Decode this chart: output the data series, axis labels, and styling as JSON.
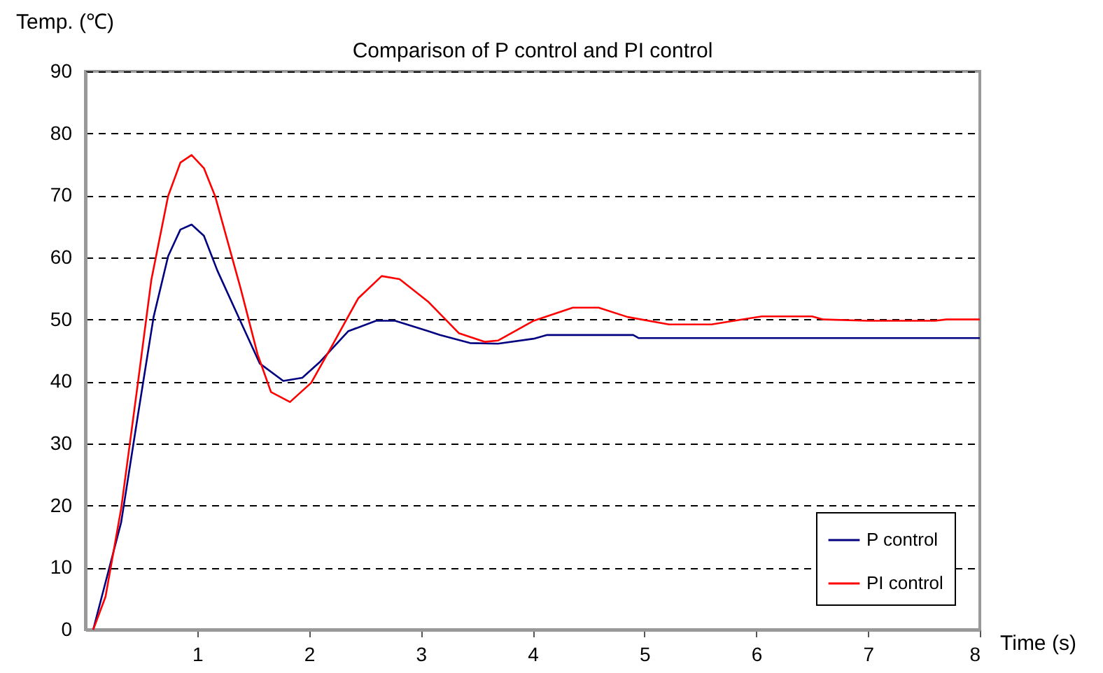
{
  "chart_data": {
    "type": "line",
    "title": "Comparison of P control and PI control",
    "xlabel": "Time (s)",
    "ylabel": "Temp. (℃)",
    "xlim": [
      0,
      8
    ],
    "xticks": [
      1,
      2,
      3,
      4,
      5,
      6,
      7,
      8
    ],
    "ylim": [
      0,
      90
    ],
    "yticks": [
      0,
      10,
      20,
      30,
      40,
      50,
      60,
      70,
      80,
      90
    ],
    "grid": "y",
    "legend": "bottom right",
    "marker": "none",
    "line_style": "solid",
    "series": [
      {
        "name": "P control",
        "color": "#000080",
        "x": [
          0.07,
          0.32,
          0.47,
          0.61,
          0.74,
          0.85,
          0.95,
          1.06,
          1.18,
          1.39,
          1.56,
          1.77,
          1.94,
          2.1,
          2.35,
          2.6,
          2.77,
          3.07,
          3.17,
          3.44,
          3.69,
          4.01,
          4.13,
          4.9,
          4.95,
          8.0
        ],
        "values": [
          0,
          17.3,
          34.6,
          50.4,
          60.2,
          64.5,
          65.3,
          63.5,
          57.9,
          49.6,
          42.9,
          40.1,
          40.6,
          43.2,
          48.1,
          49.8,
          49.8,
          48.1,
          47.5,
          46.2,
          46.1,
          46.9,
          47.5,
          47.5,
          47,
          47
        ]
      },
      {
        "name": "PI control",
        "color": "#ff0000",
        "x": [
          0.07,
          0.18,
          0.32,
          0.47,
          0.59,
          0.74,
          0.85,
          0.95,
          1.06,
          1.16,
          1.39,
          1.54,
          1.66,
          1.83,
          2.02,
          2.21,
          2.44,
          2.65,
          2.81,
          3.07,
          3.34,
          3.57,
          3.69,
          4.01,
          4.36,
          4.59,
          4.85,
          5.22,
          5.6,
          5.87,
          6.05,
          6.5,
          6.6,
          7.0,
          7.6,
          7.7,
          8.0
        ],
        "values": [
          0,
          5.3,
          19.5,
          39.8,
          56.4,
          69.9,
          75.3,
          76.5,
          74.4,
          69.9,
          54.9,
          44.4,
          38.3,
          36.7,
          39.8,
          45.9,
          53.4,
          57.0,
          56.5,
          52.8,
          47.8,
          46.4,
          46.6,
          49.8,
          51.9,
          51.9,
          50.4,
          49.2,
          49.2,
          50,
          50.5,
          50.5,
          50,
          49.8,
          49.8,
          50,
          50
        ]
      }
    ]
  }
}
